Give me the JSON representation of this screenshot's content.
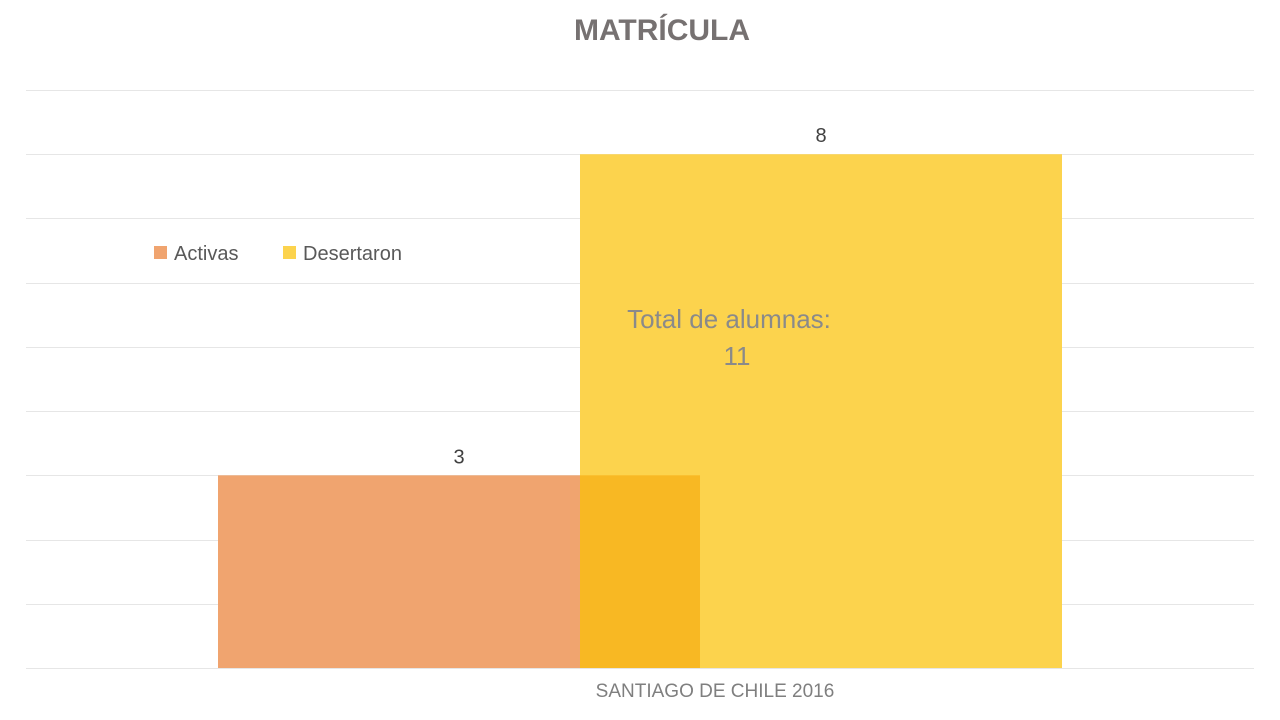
{
  "chart_data": {
    "type": "bar",
    "title": "MATRÍCULA",
    "categories": [
      "SANTIAGO DE CHILE  2016"
    ],
    "series": [
      {
        "name": "Activas",
        "values": [
          3
        ],
        "color": "#f0a46f"
      },
      {
        "name": "Desertaron",
        "values": [
          8
        ],
        "color": "#fcd34d"
      }
    ],
    "overlap_color": "#f8b823",
    "ylim": [
      0,
      9
    ],
    "grid": true,
    "legend_placement": "left",
    "annotation": {
      "line1": "Total de alumnas:",
      "line2": "11"
    }
  }
}
